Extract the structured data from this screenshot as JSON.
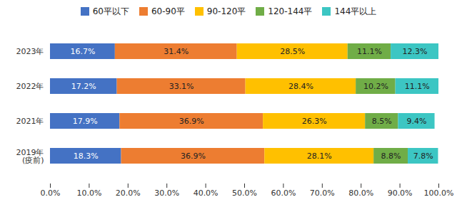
{
  "chart_data": {
    "type": "bar",
    "orientation": "horizontal",
    "stacked": true,
    "data_labels": true,
    "grid": false,
    "legend": "top",
    "categories": [
      "2023年",
      "2022年",
      "2021年",
      "2019年\n(疫前)"
    ],
    "xlim": [
      0,
      100
    ],
    "xticks": [
      {
        "value": 0,
        "label": "0.0%"
      },
      {
        "value": 10,
        "label": "10.0%"
      },
      {
        "value": 20,
        "label": "20.0%"
      },
      {
        "value": 30,
        "label": "30.0%"
      },
      {
        "value": 40,
        "label": "40.0%"
      },
      {
        "value": 50,
        "label": "50.0%"
      },
      {
        "value": 60,
        "label": "60.0%"
      },
      {
        "value": 70,
        "label": "70.0%"
      },
      {
        "value": 80,
        "label": "80.0%"
      },
      {
        "value": 90,
        "label": "90.0%"
      },
      {
        "value": 100,
        "label": "100.0%"
      }
    ],
    "series": [
      {
        "name": "60平以下",
        "color": "#4472c4",
        "values": [
          16.7,
          17.2,
          17.9,
          18.3
        ],
        "value_labels": [
          "16.7%",
          "17.2%",
          "17.9%",
          "18.3%"
        ]
      },
      {
        "name": "60-90平",
        "color": "#ed7d31",
        "values": [
          31.4,
          33.1,
          36.9,
          36.9
        ],
        "value_labels": [
          "31.4%",
          "33.1%",
          "36.9%",
          "36.9%"
        ]
      },
      {
        "name": "90-120平",
        "color": "#ffc000",
        "values": [
          28.5,
          28.4,
          26.3,
          28.1
        ],
        "value_labels": [
          "28.5%",
          "28.4%",
          "26.3%",
          "28.1%"
        ]
      },
      {
        "name": "120-144平",
        "color": "#70ad47",
        "values": [
          11.1,
          10.2,
          8.5,
          8.8
        ],
        "value_labels": [
          "11.1%",
          "10.2%",
          "8.5%",
          "8.8%"
        ]
      },
      {
        "name": "144平以上",
        "color": "#3cc6c3",
        "values": [
          12.3,
          11.1,
          9.4,
          7.8
        ],
        "value_labels": [
          "12.3%",
          "11.1%",
          "9.4%",
          "7.8%"
        ]
      }
    ]
  }
}
